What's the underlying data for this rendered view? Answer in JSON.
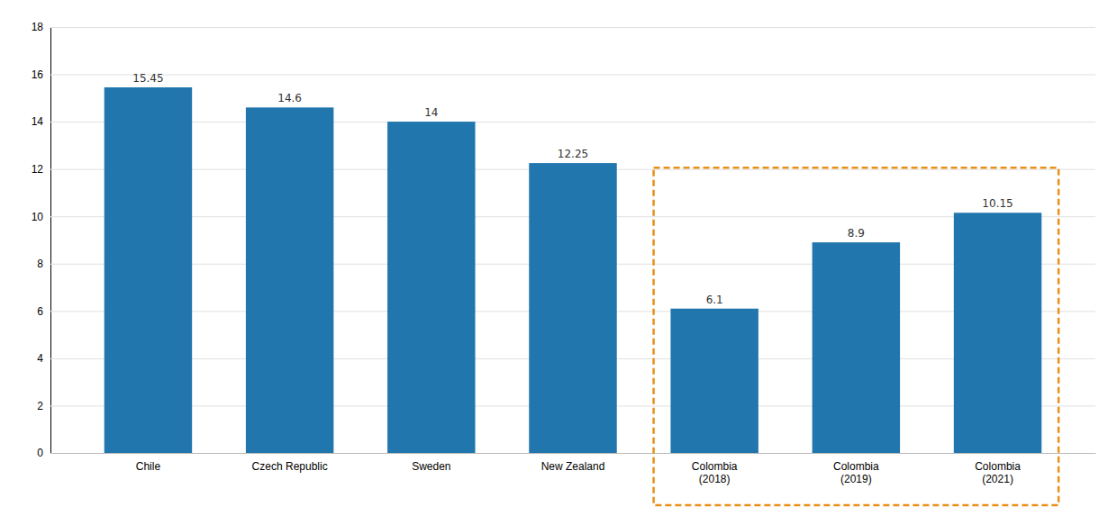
{
  "chart_data": {
    "type": "bar",
    "categories": [
      "Chile",
      "Czech Republic",
      "Sweden",
      "New Zealand",
      "Colombia\n(2018)",
      "Colombia\n(2019)",
      "Colombia\n(2021)"
    ],
    "values": [
      15.45,
      14.6,
      14,
      12.25,
      6.1,
      8.9,
      10.15
    ],
    "color": "#2176AE",
    "ylim": [
      0,
      18
    ],
    "yticks": [
      0,
      2,
      4,
      6,
      8,
      10,
      12,
      14,
      16,
      18
    ],
    "grid": true,
    "data_labels": true
  }
}
